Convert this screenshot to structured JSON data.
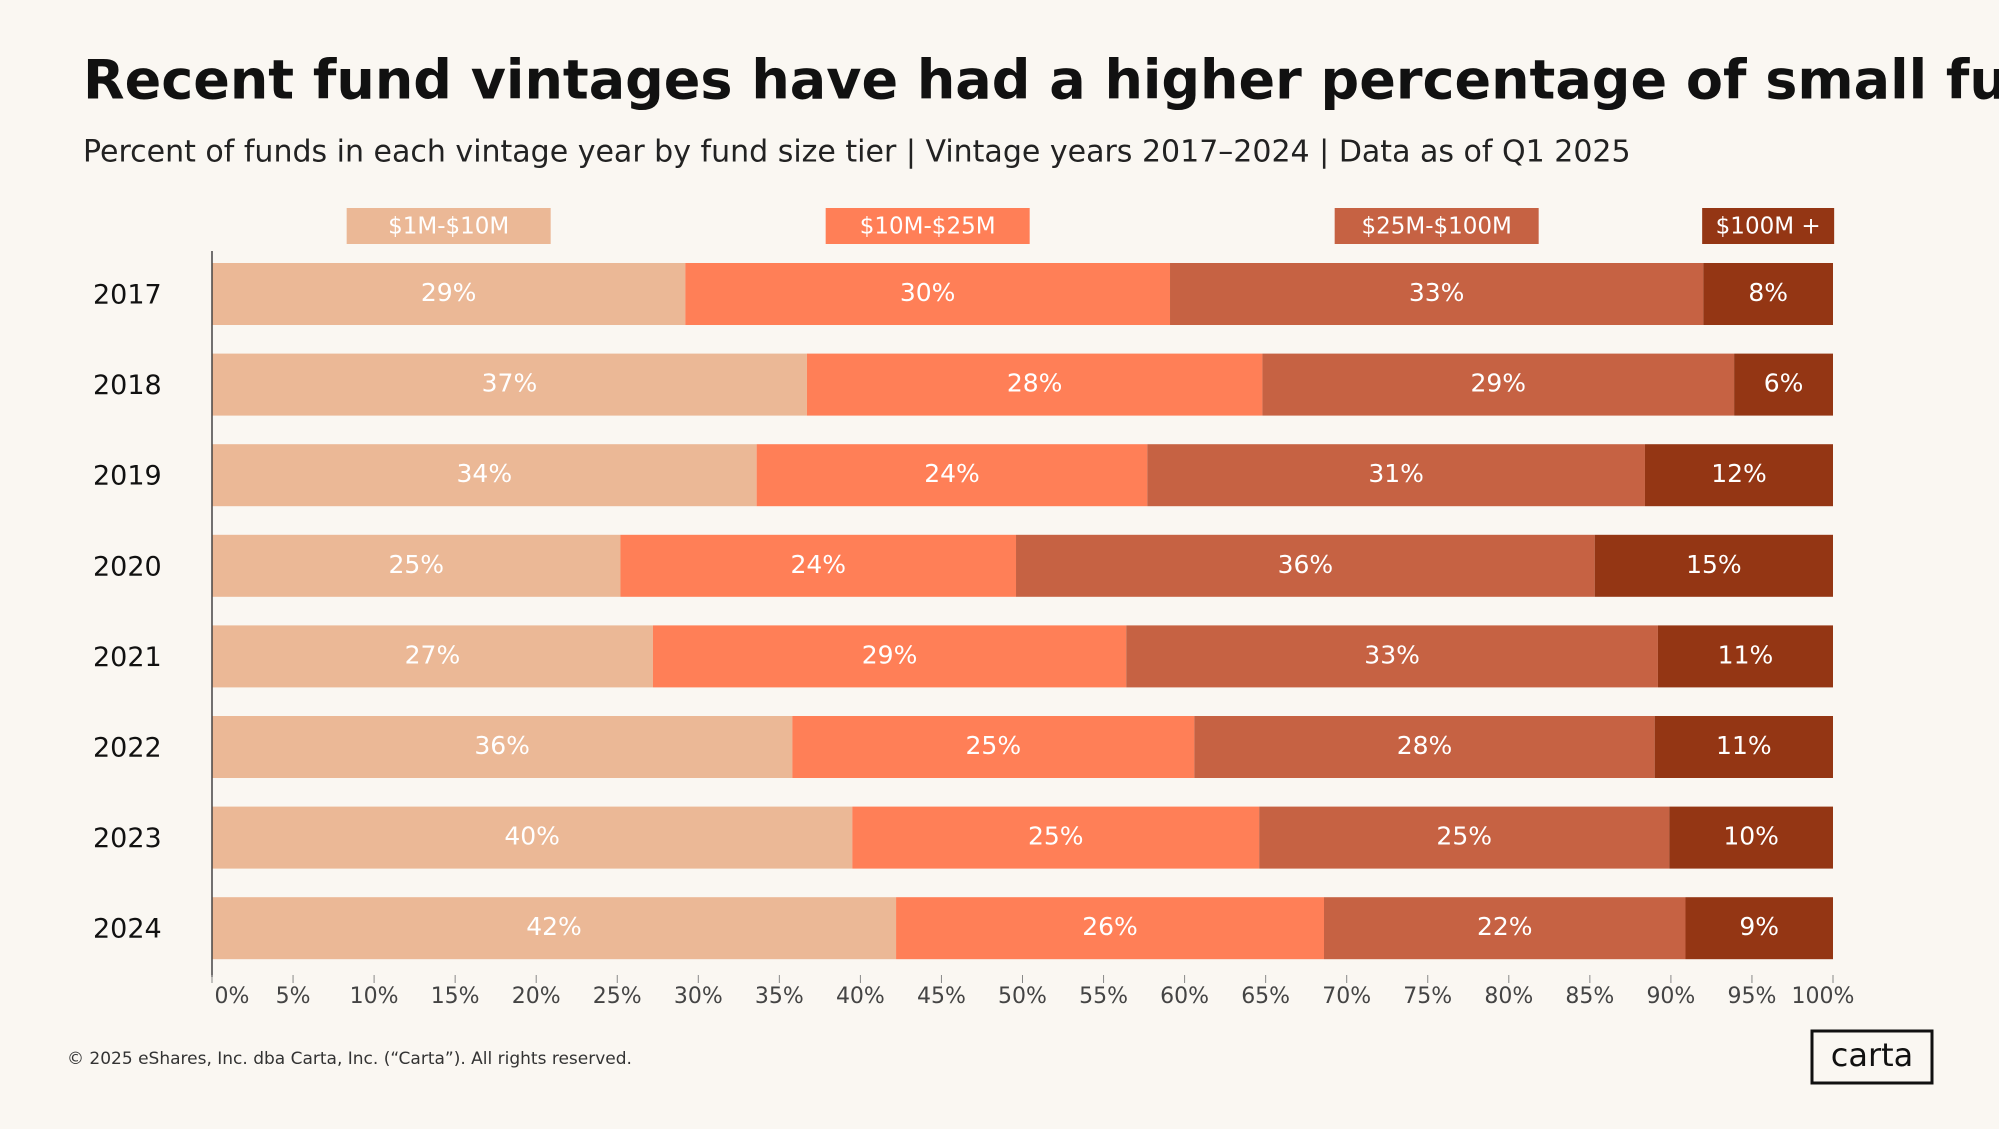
{
  "chart_data": {
    "type": "stacked-bar-horizontal",
    "title": "Recent fund vintages have had a higher percentage of small funds",
    "subtitle": "Percent of funds in each vintage year by fund size tier | Vintage years 2017–2024 | Data as of Q1 2025",
    "categories": [
      "2017",
      "2018",
      "2019",
      "2020",
      "2021",
      "2022",
      "2023",
      "2024"
    ],
    "series": [
      {
        "name": "$1M-$10M",
        "color": "#ebb896",
        "values": [
          29.2,
          36.7,
          33.6,
          25.2,
          27.2,
          35.8,
          39.5,
          42.2
        ],
        "value_labels": [
          "29%",
          "37%",
          "34%",
          "25%",
          "27%",
          "36%",
          "40%",
          "42%"
        ]
      },
      {
        "name": "$10M-$25M",
        "color": "#ff7f57",
        "values": [
          29.9,
          28.1,
          24.1,
          24.4,
          29.2,
          24.8,
          25.1,
          26.4
        ],
        "value_labels": [
          "30%",
          "28%",
          "24%",
          "24%",
          "29%",
          "25%",
          "25%",
          "26%"
        ]
      },
      {
        "name": "$25M-$100M",
        "color": "#c66243",
        "values": [
          32.9,
          29.1,
          30.7,
          35.7,
          32.8,
          28.4,
          25.3,
          22.3
        ],
        "value_labels": [
          "33%",
          "29%",
          "31%",
          "36%",
          "33%",
          "28%",
          "25%",
          "22%"
        ]
      },
      {
        "name": "$100M +",
        "color": "#943614",
        "values": [
          8.0,
          6.1,
          11.6,
          14.7,
          10.8,
          11.0,
          10.1,
          9.1
        ],
        "value_labels": [
          "8%",
          "6%",
          "12%",
          "15%",
          "11%",
          "11%",
          "10%",
          "9%"
        ]
      }
    ],
    "xlim": [
      0,
      100
    ],
    "xticks": [
      {
        "value": 0,
        "label": "0%"
      },
      {
        "value": 5,
        "label": "5%"
      },
      {
        "value": 10,
        "label": "10%"
      },
      {
        "value": 15,
        "label": "15%"
      },
      {
        "value": 20,
        "label": "20%"
      },
      {
        "value": 25,
        "label": "25%"
      },
      {
        "value": 30,
        "label": "30%"
      },
      {
        "value": 35,
        "label": "35%"
      },
      {
        "value": 40,
        "label": "40%"
      },
      {
        "value": 45,
        "label": "45%"
      },
      {
        "value": 50,
        "label": "50%"
      },
      {
        "value": 55,
        "label": "55%"
      },
      {
        "value": 60,
        "label": "60%"
      },
      {
        "value": 65,
        "label": "65%"
      },
      {
        "value": 70,
        "label": "70%"
      },
      {
        "value": 75,
        "label": "75%"
      },
      {
        "value": 80,
        "label": "80%"
      },
      {
        "value": 85,
        "label": "85%"
      },
      {
        "value": 90,
        "label": "90%"
      },
      {
        "value": 95,
        "label": "95%"
      },
      {
        "value": 100,
        "label": "100%"
      }
    ],
    "grid": false,
    "footer": "© 2025 eShares, Inc. dba Carta, Inc. (“Carta”). All rights reserved.",
    "logo": "carta"
  }
}
